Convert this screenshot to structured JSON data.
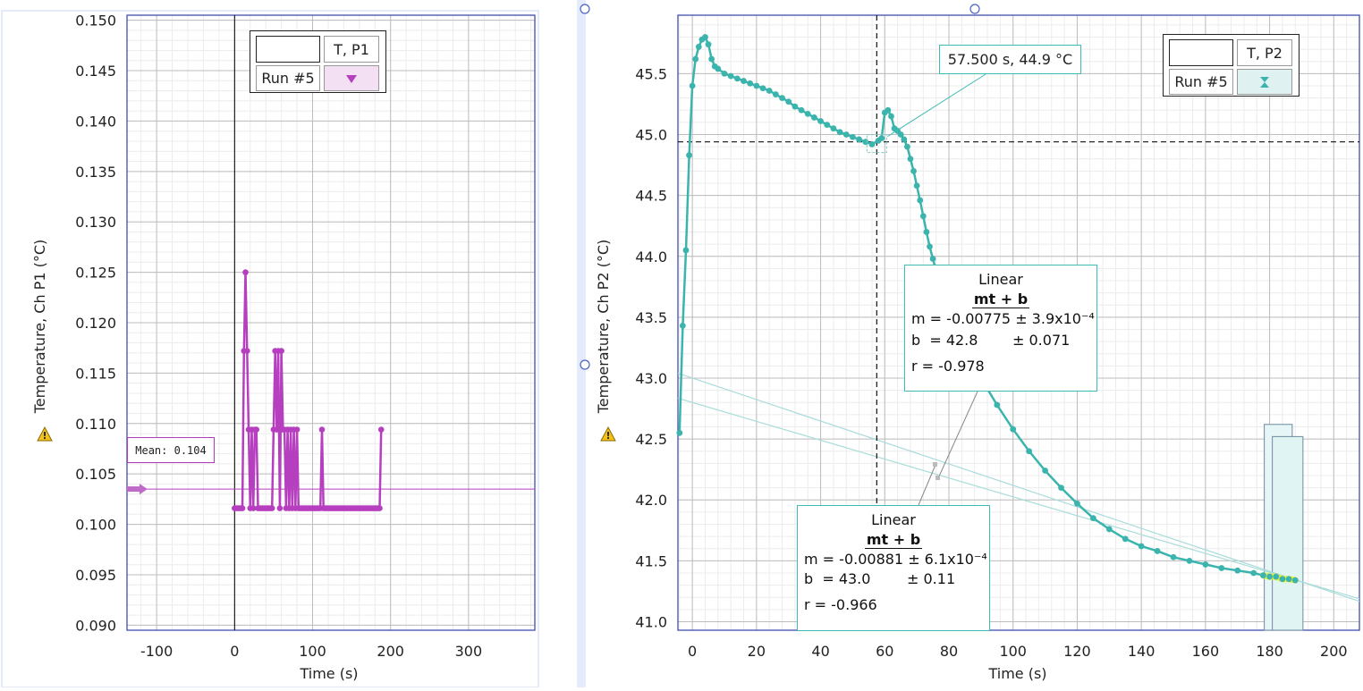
{
  "left_chart": {
    "ylabel": "Temperature, Ch P1 (°C)",
    "xlabel": "Time (s)",
    "legend": {
      "channel": "T, P1",
      "run": "Run #5"
    },
    "mean_label": "Mean: 0.104",
    "series_color": "#b63fbf"
  },
  "right_chart": {
    "ylabel": "Temperature, Ch P2 (°C)",
    "xlabel": "Time (s)",
    "legend": {
      "channel": "T, P2",
      "run": "Run #5"
    },
    "coord_readout": "57.500 s, 44.9 °C",
    "series_color": "#3bb4ae",
    "fit1": {
      "title": "Linear",
      "eq": "mt + b",
      "m": "m = -0.00775 ± 3.9x10⁻⁴",
      "b": "b  = 42.8",
      "b_err": "± 0.071",
      "r": "r = -0.978"
    },
    "fit2": {
      "title": "Linear",
      "eq": "mt + b",
      "m": "m = -0.00881 ± 6.1x10⁻⁴",
      "b": "b  = 43.0",
      "b_err": "± 0.11",
      "r": "r = -0.966"
    }
  },
  "chart_data": [
    {
      "type": "line",
      "ylabel": "Temperature, Ch P1 (°C)",
      "xlabel": "Time (s)",
      "xlim": [
        -138,
        385
      ],
      "ylim": [
        0.0895,
        0.1505
      ],
      "xticks": [
        -100,
        0,
        100,
        200,
        300
      ],
      "yticks": [
        0.09,
        0.095,
        0.1,
        0.105,
        0.11,
        0.115,
        0.12,
        0.125,
        0.13,
        0.135,
        0.14,
        0.145,
        0.15
      ],
      "ytick_labels": [
        "0.090",
        "0.095",
        "0.100",
        "0.105",
        "0.110",
        "0.115",
        "0.120",
        "0.125",
        "0.130",
        "0.135",
        "0.140",
        "0.145",
        "0.150"
      ],
      "grid": true,
      "legend": "top",
      "mean": 0.1035,
      "series": [
        {
          "name": "Run #5",
          "x": [
            0,
            2,
            4,
            6,
            8,
            10,
            12,
            14,
            16,
            18,
            20,
            22,
            24,
            26,
            28,
            30,
            32,
            34,
            36,
            38,
            40,
            42,
            44,
            46,
            48,
            50,
            52,
            54,
            56,
            58,
            60,
            62,
            64,
            66,
            68,
            70,
            72,
            74,
            76,
            78,
            80,
            82,
            84,
            86,
            88,
            90,
            92,
            94,
            96,
            98,
            100,
            102,
            104,
            106,
            108,
            110,
            112,
            114,
            116,
            118,
            120,
            122,
            124,
            126,
            128,
            130,
            132,
            134,
            136,
            138,
            140,
            142,
            144,
            146,
            148,
            150,
            152,
            154,
            156,
            158,
            160,
            162,
            164,
            166,
            168,
            170,
            172,
            174,
            176,
            178,
            180,
            182,
            184,
            186,
            188
          ],
          "y": [
            0.1016,
            0.1016,
            0.1016,
            0.1016,
            0.1016,
            0.1016,
            0.1172,
            0.125,
            0.1172,
            0.1094,
            0.1016,
            0.1094,
            0.1016,
            0.1094,
            0.1094,
            0.1016,
            0.1016,
            0.1016,
            0.1016,
            0.1016,
            0.1016,
            0.1016,
            0.1016,
            0.1016,
            0.1016,
            0.1094,
            0.1172,
            0.1094,
            0.1172,
            0.1016,
            0.1172,
            0.1094,
            0.1094,
            0.1016,
            0.1094,
            0.1016,
            0.1094,
            0.1016,
            0.1094,
            0.1016,
            0.1094,
            0.1016,
            0.1016,
            0.1016,
            0.1016,
            0.1016,
            0.1016,
            0.1016,
            0.1016,
            0.1016,
            0.1016,
            0.1016,
            0.1016,
            0.1016,
            0.1016,
            0.1016,
            0.1094,
            0.1016,
            0.1016,
            0.1016,
            0.1016,
            0.1016,
            0.1016,
            0.1016,
            0.1016,
            0.1016,
            0.1016,
            0.1016,
            0.1016,
            0.1016,
            0.1016,
            0.1016,
            0.1016,
            0.1016,
            0.1016,
            0.1016,
            0.1016,
            0.1016,
            0.1016,
            0.1016,
            0.1016,
            0.1016,
            0.1016,
            0.1016,
            0.1016,
            0.1016,
            0.1016,
            0.1016,
            0.1016,
            0.1016,
            0.1016,
            0.1016,
            0.1016,
            0.1016,
            0.1094
          ]
        }
      ]
    },
    {
      "type": "scatter",
      "ylabel": "Temperature, Ch P2 (°C)",
      "xlabel": "Time (s)",
      "xlim": [
        -4.5,
        208
      ],
      "ylim": [
        40.93,
        45.98
      ],
      "xticks": [
        0,
        20,
        40,
        60,
        80,
        100,
        120,
        140,
        160,
        180,
        200
      ],
      "yticks": [
        41.0,
        41.5,
        42.0,
        42.5,
        43.0,
        43.5,
        44.0,
        44.5,
        45.0,
        45.5
      ],
      "ytick_labels": [
        "41.0",
        "41.5",
        "42.0",
        "42.5",
        "43.0",
        "43.5",
        "44.0",
        "44.5",
        "45.0",
        "45.5"
      ],
      "grid": true,
      "legend": "top-right",
      "cursor": {
        "x": 57.5,
        "y": 44.94
      },
      "selection_x": [
        177.5,
        189
      ],
      "fit_lines": [
        {
          "m": -0.00775,
          "b": 42.8
        },
        {
          "m": -0.00881,
          "b": 43.0
        }
      ],
      "series": [
        {
          "name": "Run #5",
          "x": [
            -4,
            -3,
            -2,
            -1,
            0,
            1,
            2,
            3,
            4,
            5,
            6,
            7,
            8,
            10,
            12,
            14,
            16,
            18,
            20,
            22,
            24,
            26,
            28,
            30,
            32,
            34,
            36,
            38,
            40,
            42,
            44,
            46,
            48,
            50,
            52,
            54,
            56,
            58,
            59,
            60,
            61,
            62,
            63,
            64,
            65,
            66,
            67,
            68,
            69,
            70,
            71,
            72,
            73,
            74,
            75,
            76,
            77,
            78,
            79,
            80,
            85,
            90,
            95,
            100,
            105,
            110,
            115,
            120,
            125,
            130,
            135,
            140,
            145,
            150,
            155,
            160,
            165,
            170,
            175,
            178,
            180,
            182,
            184,
            186,
            188
          ],
          "y": [
            42.55,
            43.43,
            44.05,
            44.83,
            45.4,
            45.62,
            45.72,
            45.78,
            45.8,
            45.74,
            45.62,
            45.56,
            45.54,
            45.5,
            45.48,
            45.46,
            45.44,
            45.42,
            45.4,
            45.38,
            45.36,
            45.33,
            45.3,
            45.27,
            45.23,
            45.2,
            45.17,
            45.14,
            45.11,
            45.08,
            45.05,
            45.02,
            45.0,
            44.98,
            44.96,
            44.94,
            44.92,
            44.95,
            44.97,
            45.18,
            45.2,
            45.15,
            45.05,
            45.03,
            45.0,
            44.96,
            44.9,
            44.8,
            44.7,
            44.58,
            44.46,
            44.33,
            44.2,
            44.08,
            43.98,
            43.88,
            43.8,
            43.7,
            43.6,
            43.5,
            43.25,
            43.0,
            42.78,
            42.58,
            42.4,
            42.24,
            42.1,
            41.97,
            41.85,
            41.76,
            41.68,
            41.62,
            41.58,
            41.53,
            41.5,
            41.47,
            41.44,
            41.42,
            41.4,
            41.38,
            41.37,
            41.37,
            41.35,
            41.35,
            41.34
          ]
        }
      ]
    }
  ]
}
